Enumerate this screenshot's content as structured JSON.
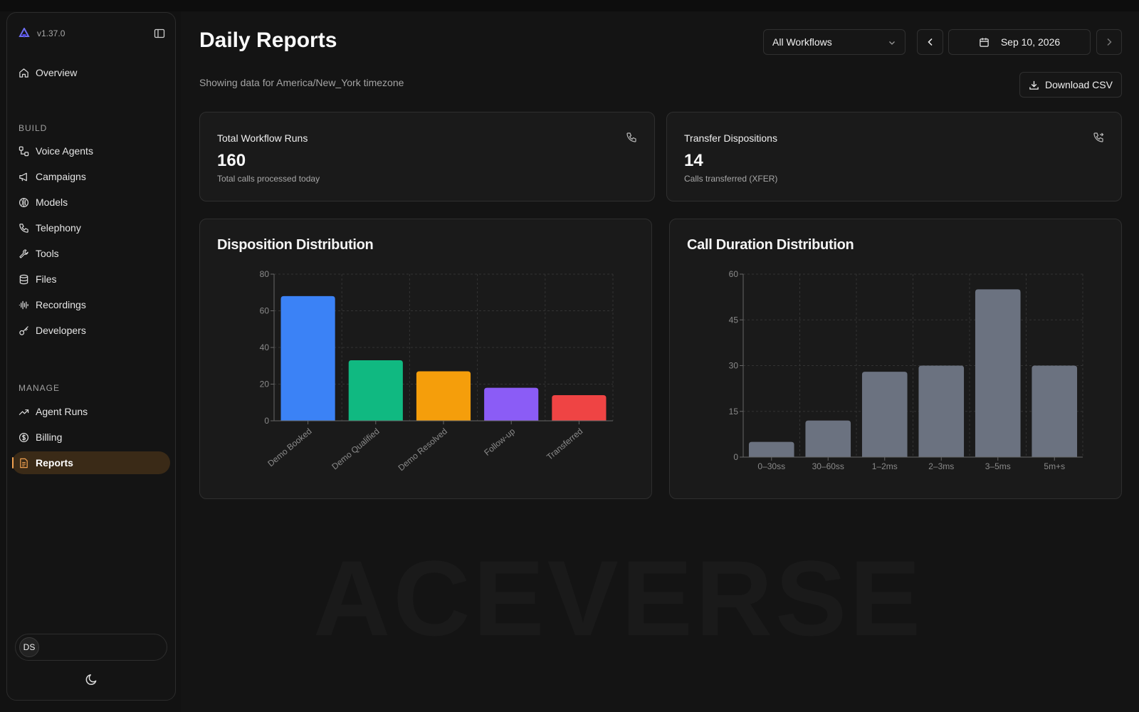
{
  "app": {
    "version": "v1.37.0",
    "watermark": "ACEVERSE"
  },
  "sidebar": {
    "overview": {
      "label": "Overview",
      "icon": "home-icon"
    },
    "build_label": "BUILD",
    "build_items": [
      {
        "label": "Voice Agents",
        "icon": "workflow-icon"
      },
      {
        "label": "Campaigns",
        "icon": "megaphone-icon"
      },
      {
        "label": "Models",
        "icon": "brain-icon"
      },
      {
        "label": "Telephony",
        "icon": "phone-icon"
      },
      {
        "label": "Tools",
        "icon": "wrench-icon"
      },
      {
        "label": "Files",
        "icon": "database-icon"
      },
      {
        "label": "Recordings",
        "icon": "audio-waveform-icon"
      },
      {
        "label": "Developers",
        "icon": "key-icon"
      }
    ],
    "manage_label": "MANAGE",
    "manage_items": [
      {
        "label": "Agent Runs",
        "icon": "trending-up-icon"
      },
      {
        "label": "Billing",
        "icon": "dollar-circle-icon"
      },
      {
        "label": "Reports",
        "icon": "file-text-icon",
        "active": true
      }
    ],
    "user_initials": "DS",
    "accent": "#f0a050"
  },
  "header": {
    "title": "Daily Reports",
    "subtitle": "Showing data for America/New_York timezone",
    "workflow_select": "All Workflows",
    "date": "Sep 10, 2026",
    "download_label": "Download CSV"
  },
  "stats": [
    {
      "title": "Total Workflow Runs",
      "value": "160",
      "desc": "Total calls processed today",
      "icon": "phone-icon"
    },
    {
      "title": "Transfer Dispositions",
      "value": "14",
      "desc": "Calls transferred (XFER)",
      "icon": "phone-forwarded-icon"
    }
  ],
  "chart_data": [
    {
      "type": "bar",
      "title": "Disposition Distribution",
      "categories": [
        "Demo Booked",
        "Demo Qualified",
        "Demo Resolved",
        "Follow-up",
        "Transferred"
      ],
      "values": [
        68,
        33,
        27,
        18,
        14
      ],
      "colors": [
        "#3b82f6",
        "#10b981",
        "#f59e0b",
        "#8b5cf6",
        "#ef4444"
      ],
      "ylim": [
        0,
        80
      ],
      "yticks": [
        0,
        20,
        40,
        60,
        80
      ],
      "xlabel": "",
      "ylabel": "",
      "grid": true
    },
    {
      "type": "bar",
      "title": "Call Duration Distribution",
      "categories": [
        "0–30ss",
        "30–60ss",
        "1–2ms",
        "2–3ms",
        "3–5ms",
        "5m+s"
      ],
      "values": [
        5,
        12,
        28,
        30,
        55,
        30
      ],
      "colors": [
        "#6b7280"
      ],
      "ylim": [
        0,
        60
      ],
      "yticks": [
        0,
        15,
        30,
        45,
        60
      ],
      "xlabel": "",
      "ylabel": "",
      "grid": true
    }
  ]
}
